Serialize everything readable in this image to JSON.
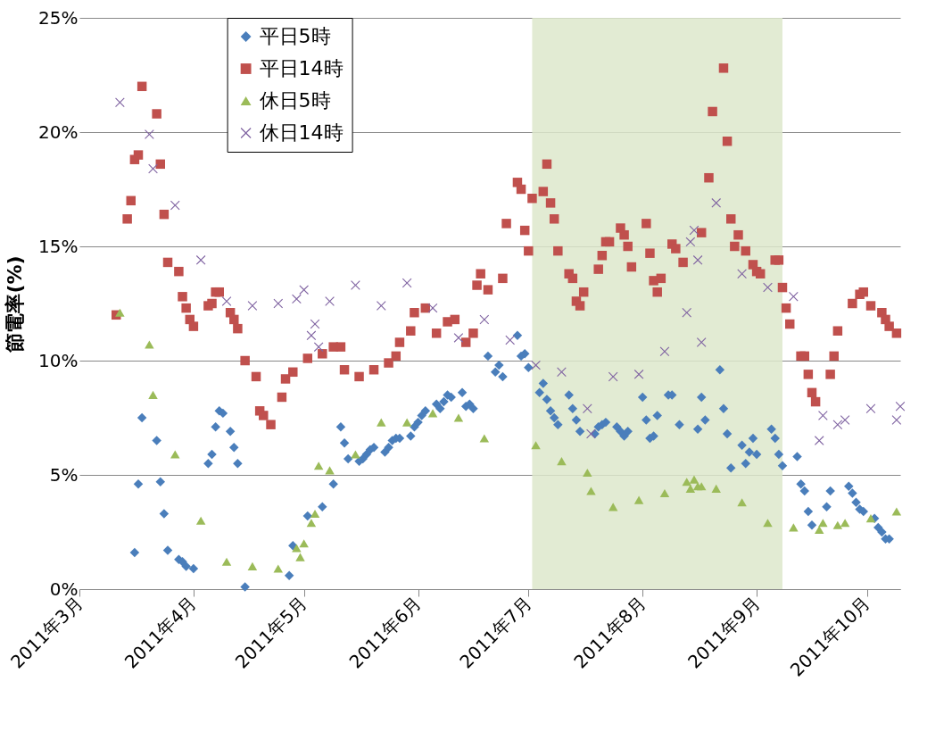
{
  "chart_data": {
    "type": "scatter",
    "ylabel": "節電率(%)",
    "xlim": [
      "2011-03-01",
      "2011-10-10"
    ],
    "xticks": [
      {
        "value": "2011-03-01",
        "label": "2011年3月"
      },
      {
        "value": "2011-04-01",
        "label": "2011年4月"
      },
      {
        "value": "2011-05-01",
        "label": "2011年5月"
      },
      {
        "value": "2011-06-01",
        "label": "2011年6月"
      },
      {
        "value": "2011-07-01",
        "label": "2011年7月"
      },
      {
        "value": "2011-08-01",
        "label": "2011年8月"
      },
      {
        "value": "2011-09-01",
        "label": "2011年9月"
      },
      {
        "value": "2011-10-01",
        "label": "2011年10月"
      }
    ],
    "ylim": [
      0,
      25
    ],
    "yticks": [
      {
        "value": 0,
        "label": "0%"
      },
      {
        "value": 5,
        "label": "5%"
      },
      {
        "value": 10,
        "label": "10%"
      },
      {
        "value": 15,
        "label": "15%"
      },
      {
        "value": 20,
        "label": "20%"
      },
      {
        "value": 25,
        "label": "25%"
      }
    ],
    "grid": "y",
    "legend": "top left",
    "bands": [
      {
        "axis": "x",
        "from": "2011-07-02",
        "to": "2011-09-08",
        "color": "#dde8cb"
      }
    ],
    "series": [
      {
        "name": "平日5時",
        "color": "#4a7ebb",
        "marker": "diamond",
        "x": [
          "2011-03-16",
          "2011-03-17",
          "2011-03-18",
          "2011-03-22",
          "2011-03-23",
          "2011-03-24",
          "2011-03-25",
          "2011-03-28",
          "2011-03-29",
          "2011-03-30",
          "2011-04-01",
          "2011-04-05",
          "2011-04-06",
          "2011-04-07",
          "2011-04-08",
          "2011-04-09",
          "2011-04-11",
          "2011-04-12",
          "2011-04-13",
          "2011-04-15",
          "2011-04-27",
          "2011-04-28",
          "2011-05-02",
          "2011-05-06",
          "2011-05-09",
          "2011-05-11",
          "2011-05-12",
          "2011-05-13",
          "2011-05-16",
          "2011-05-17",
          "2011-05-18",
          "2011-05-19",
          "2011-05-20",
          "2011-05-23",
          "2011-05-24",
          "2011-05-25",
          "2011-05-26",
          "2011-05-27",
          "2011-05-30",
          "2011-05-31",
          "2011-06-01",
          "2011-06-02",
          "2011-06-03",
          "2011-06-06",
          "2011-06-07",
          "2011-06-08",
          "2011-06-09",
          "2011-06-10",
          "2011-06-13",
          "2011-06-14",
          "2011-06-15",
          "2011-06-16",
          "2011-06-20",
          "2011-06-22",
          "2011-06-23",
          "2011-06-24",
          "2011-06-28",
          "2011-06-29",
          "2011-06-30",
          "2011-07-01",
          "2011-07-04",
          "2011-07-05",
          "2011-07-06",
          "2011-07-07",
          "2011-07-08",
          "2011-07-09",
          "2011-07-12",
          "2011-07-13",
          "2011-07-14",
          "2011-07-15",
          "2011-07-19",
          "2011-07-20",
          "2011-07-21",
          "2011-07-22",
          "2011-07-25",
          "2011-07-26",
          "2011-07-27",
          "2011-07-28",
          "2011-08-01",
          "2011-08-02",
          "2011-08-03",
          "2011-08-04",
          "2011-08-05",
          "2011-08-08",
          "2011-08-09",
          "2011-08-11",
          "2011-08-16",
          "2011-08-17",
          "2011-08-18",
          "2011-08-22",
          "2011-08-23",
          "2011-08-24",
          "2011-08-25",
          "2011-08-28",
          "2011-08-29",
          "2011-08-30",
          "2011-08-31",
          "2011-09-01",
          "2011-09-05",
          "2011-09-06",
          "2011-09-07",
          "2011-09-08",
          "2011-09-12",
          "2011-09-13",
          "2011-09-14",
          "2011-09-15",
          "2011-09-16",
          "2011-09-20",
          "2011-09-21",
          "2011-09-26",
          "2011-09-27",
          "2011-09-28",
          "2011-09-29",
          "2011-09-30",
          "2011-10-03",
          "2011-10-04",
          "2011-10-05",
          "2011-10-06",
          "2011-10-07"
        ],
        "values": [
          1.6,
          4.6,
          7.5,
          6.5,
          4.7,
          3.3,
          1.7,
          1.3,
          1.2,
          1.0,
          0.9,
          5.5,
          5.9,
          7.1,
          7.8,
          7.7,
          6.9,
          6.2,
          5.5,
          0.1,
          0.6,
          1.9,
          3.2,
          3.6,
          4.6,
          7.1,
          6.4,
          5.7,
          5.6,
          5.7,
          5.9,
          6.1,
          6.2,
          6.0,
          6.2,
          6.5,
          6.6,
          6.6,
          6.7,
          7.1,
          7.3,
          7.6,
          7.8,
          8.1,
          7.9,
          8.2,
          8.5,
          8.4,
          8.6,
          8.0,
          8.1,
          7.9,
          10.2,
          9.5,
          9.8,
          9.3,
          11.1,
          10.2,
          10.3,
          9.7,
          8.6,
          9.0,
          8.3,
          7.8,
          7.5,
          7.2,
          8.5,
          7.9,
          7.4,
          6.9,
          6.8,
          7.1,
          7.2,
          7.3,
          7.1,
          6.9,
          6.7,
          6.9,
          8.4,
          7.4,
          6.6,
          6.7,
          7.6,
          8.5,
          8.5,
          7.2,
          7.0,
          8.4,
          7.4,
          9.6,
          7.9,
          6.8,
          5.3,
          6.3,
          5.5,
          6.0,
          6.6,
          5.9,
          7.0,
          6.6,
          5.9,
          5.4,
          5.8,
          4.6,
          4.3,
          3.4,
          2.8,
          3.6,
          4.3,
          4.5,
          4.2,
          3.8,
          3.5,
          3.4,
          3.1,
          2.7,
          2.5,
          2.2,
          2.2
        ]
      },
      {
        "name": "平日14時",
        "color": "#c0504d",
        "marker": "square",
        "x": [
          "2011-03-11",
          "2011-03-14",
          "2011-03-15",
          "2011-03-16",
          "2011-03-17",
          "2011-03-18",
          "2011-03-22",
          "2011-03-23",
          "2011-03-24",
          "2011-03-25",
          "2011-03-28",
          "2011-03-29",
          "2011-03-30",
          "2011-03-31",
          "2011-04-01",
          "2011-04-05",
          "2011-04-06",
          "2011-04-07",
          "2011-04-08",
          "2011-04-11",
          "2011-04-12",
          "2011-04-13",
          "2011-04-15",
          "2011-04-18",
          "2011-04-19",
          "2011-04-20",
          "2011-04-22",
          "2011-04-25",
          "2011-04-26",
          "2011-04-28",
          "2011-05-02",
          "2011-05-06",
          "2011-05-09",
          "2011-05-11",
          "2011-05-12",
          "2011-05-16",
          "2011-05-20",
          "2011-05-24",
          "2011-05-26",
          "2011-05-27",
          "2011-05-30",
          "2011-05-31",
          "2011-06-03",
          "2011-06-06",
          "2011-06-09",
          "2011-06-11",
          "2011-06-14",
          "2011-06-16",
          "2011-06-17",
          "2011-06-18",
          "2011-06-20",
          "2011-06-24",
          "2011-06-25",
          "2011-06-28",
          "2011-06-29",
          "2011-06-30",
          "2011-07-01",
          "2011-07-02",
          "2011-07-05",
          "2011-07-06",
          "2011-07-07",
          "2011-07-08",
          "2011-07-09",
          "2011-07-12",
          "2011-07-13",
          "2011-07-14",
          "2011-07-15",
          "2011-07-16",
          "2011-07-20",
          "2011-07-21",
          "2011-07-22",
          "2011-07-23",
          "2011-07-26",
          "2011-07-27",
          "2011-07-28",
          "2011-07-29",
          "2011-08-02",
          "2011-08-03",
          "2011-08-04",
          "2011-08-05",
          "2011-08-06",
          "2011-08-09",
          "2011-08-10",
          "2011-08-12",
          "2011-08-17",
          "2011-08-19",
          "2011-08-20",
          "2011-08-23",
          "2011-08-24",
          "2011-08-25",
          "2011-08-26",
          "2011-08-27",
          "2011-08-29",
          "2011-08-31",
          "2011-09-01",
          "2011-09-02",
          "2011-09-06",
          "2011-09-07",
          "2011-09-08",
          "2011-09-09",
          "2011-09-10",
          "2011-09-13",
          "2011-09-14",
          "2011-09-15",
          "2011-09-16",
          "2011-09-17",
          "2011-09-21",
          "2011-09-22",
          "2011-09-23",
          "2011-09-27",
          "2011-09-29",
          "2011-09-30",
          "2011-10-02",
          "2011-10-05",
          "2011-10-06",
          "2011-10-07",
          "2011-10-09"
        ],
        "values": [
          12.0,
          16.2,
          17.0,
          18.8,
          19.0,
          22.0,
          20.8,
          18.6,
          16.4,
          14.3,
          13.9,
          12.8,
          12.3,
          11.8,
          11.5,
          12.4,
          12.5,
          13.0,
          13.0,
          12.1,
          11.8,
          11.4,
          10.0,
          9.3,
          7.8,
          7.6,
          7.2,
          8.4,
          9.2,
          9.5,
          10.1,
          10.3,
          10.6,
          10.6,
          9.6,
          9.3,
          9.6,
          9.9,
          10.2,
          10.8,
          11.3,
          12.1,
          12.3,
          11.2,
          11.7,
          11.8,
          10.8,
          11.2,
          13.3,
          13.8,
          13.1,
          13.6,
          16.0,
          17.8,
          17.5,
          15.7,
          14.8,
          17.1,
          17.4,
          18.6,
          16.9,
          16.2,
          14.8,
          13.8,
          13.6,
          12.6,
          12.4,
          13.0,
          14.0,
          14.6,
          15.2,
          15.2,
          15.8,
          15.5,
          15.0,
          14.1,
          16.0,
          14.7,
          13.5,
          13.0,
          13.6,
          15.1,
          14.9,
          14.3,
          15.6,
          18.0,
          20.9,
          22.8,
          19.6,
          16.2,
          15.0,
          15.5,
          14.8,
          14.2,
          13.9,
          13.8,
          14.4,
          14.4,
          13.2,
          12.3,
          11.6,
          10.2,
          10.2,
          9.4,
          8.6,
          8.2,
          9.4,
          10.2,
          11.3,
          12.5,
          12.9,
          13.0,
          12.4,
          12.1,
          11.8,
          11.5,
          11.2
        ]
      },
      {
        "name": "休日5時",
        "color": "#9bbb59",
        "marker": "triangle",
        "x": [
          "2011-03-12",
          "2011-03-20",
          "2011-03-21",
          "2011-03-27",
          "2011-04-03",
          "2011-04-10",
          "2011-04-17",
          "2011-04-24",
          "2011-04-29",
          "2011-04-30",
          "2011-05-01",
          "2011-05-03",
          "2011-05-04",
          "2011-05-05",
          "2011-05-08",
          "2011-05-15",
          "2011-05-22",
          "2011-05-29",
          "2011-06-05",
          "2011-06-12",
          "2011-06-19",
          "2011-07-03",
          "2011-07-10",
          "2011-07-17",
          "2011-07-18",
          "2011-07-24",
          "2011-07-31",
          "2011-08-07",
          "2011-08-13",
          "2011-08-14",
          "2011-08-15",
          "2011-08-16",
          "2011-08-17",
          "2011-08-21",
          "2011-08-28",
          "2011-09-04",
          "2011-09-11",
          "2011-09-18",
          "2011-09-19",
          "2011-09-23",
          "2011-09-25",
          "2011-10-02",
          "2011-10-09"
        ],
        "values": [
          12.1,
          10.7,
          8.5,
          5.9,
          3.0,
          1.2,
          1.0,
          0.9,
          1.8,
          1.4,
          2.0,
          2.9,
          3.3,
          5.4,
          5.2,
          5.9,
          7.3,
          7.3,
          7.7,
          7.5,
          6.6,
          6.3,
          5.6,
          5.1,
          4.3,
          3.6,
          3.9,
          4.2,
          4.7,
          4.4,
          4.8,
          4.5,
          4.5,
          4.4,
          3.8,
          2.9,
          2.7,
          2.6,
          2.9,
          2.8,
          2.9,
          3.1,
          3.4
        ]
      },
      {
        "name": "休日14時",
        "color": "#8064a2",
        "marker": "cross",
        "x": [
          "2011-03-12",
          "2011-03-20",
          "2011-03-21",
          "2011-03-27",
          "2011-04-03",
          "2011-04-10",
          "2011-04-17",
          "2011-04-24",
          "2011-04-29",
          "2011-05-01",
          "2011-05-03",
          "2011-05-04",
          "2011-05-05",
          "2011-05-08",
          "2011-05-15",
          "2011-05-22",
          "2011-05-29",
          "2011-06-05",
          "2011-06-12",
          "2011-06-19",
          "2011-06-26",
          "2011-07-03",
          "2011-07-10",
          "2011-07-17",
          "2011-07-18",
          "2011-07-24",
          "2011-07-31",
          "2011-08-07",
          "2011-08-13",
          "2011-08-14",
          "2011-08-15",
          "2011-08-16",
          "2011-08-17",
          "2011-08-21",
          "2011-08-28",
          "2011-09-04",
          "2011-09-11",
          "2011-09-18",
          "2011-09-19",
          "2011-09-23",
          "2011-09-25",
          "2011-10-02",
          "2011-10-09",
          "2011-10-10"
        ],
        "values": [
          21.3,
          19.9,
          18.4,
          16.8,
          14.4,
          12.6,
          12.4,
          12.5,
          12.7,
          13.1,
          11.1,
          11.6,
          10.6,
          12.6,
          13.3,
          12.4,
          13.4,
          12.3,
          11.0,
          11.8,
          10.9,
          9.8,
          9.5,
          7.9,
          6.8,
          9.3,
          9.4,
          10.4,
          12.1,
          15.2,
          15.7,
          14.4,
          10.8,
          16.9,
          13.8,
          13.2,
          12.8,
          6.5,
          7.6,
          7.2,
          7.4,
          7.9,
          7.4,
          8.0
        ]
      }
    ]
  }
}
